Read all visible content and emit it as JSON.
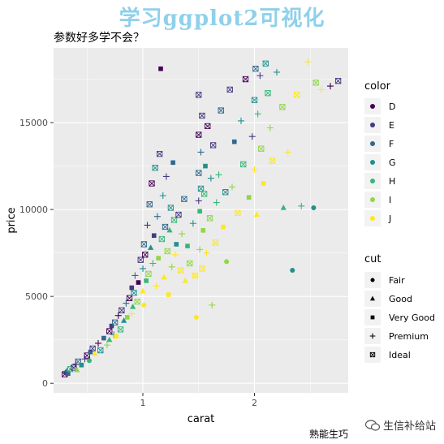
{
  "header": {
    "banner": "学习ggplot2可视化",
    "subtitle": "参数好多学不会？"
  },
  "footer": {
    "caption": "熟能生巧",
    "watermark": "生信补给站"
  },
  "colors": {
    "panel_bg": "#ebebeb",
    "grid": "#ffffff",
    "color_scale": {
      "D": "#440154",
      "E": "#443a83",
      "F": "#31688e",
      "G": "#21908d",
      "H": "#35b779",
      "I": "#8fd744",
      "J": "#fde725"
    }
  },
  "chart_data": {
    "type": "scatter",
    "xlabel": "carat",
    "ylabel": "price",
    "xlim": [
      0.2,
      2.84
    ],
    "ylim": [
      -550,
      19300
    ],
    "x_ticks": [
      1,
      2
    ],
    "y_ticks": [
      0,
      5000,
      10000,
      15000
    ],
    "grid": true,
    "legend_color": {
      "title": "color",
      "entries": [
        "D",
        "E",
        "F",
        "G",
        "H",
        "I",
        "J"
      ]
    },
    "legend_cut": {
      "title": "cut",
      "entries": [
        {
          "label": "Fair",
          "shape": "circle"
        },
        {
          "label": "Good",
          "shape": "triangle"
        },
        {
          "label": "Very Good",
          "shape": "square"
        },
        {
          "label": "Premium",
          "shape": "plus"
        },
        {
          "label": "Ideal",
          "shape": "boxx"
        }
      ]
    },
    "points": [
      [
        0.3,
        520,
        "D",
        "Ideal"
      ],
      [
        0.31,
        640,
        "E",
        "Good"
      ],
      [
        0.32,
        710,
        "G",
        "Premium"
      ],
      [
        0.33,
        560,
        "F",
        "Very Good"
      ],
      [
        0.35,
        820,
        "H",
        "Ideal"
      ],
      [
        0.38,
        900,
        "E",
        "Ideal"
      ],
      [
        0.4,
        1100,
        "D",
        "Premium"
      ],
      [
        0.41,
        760,
        "I",
        "Good"
      ],
      [
        0.42,
        1250,
        "F",
        "Ideal"
      ],
      [
        0.45,
        1050,
        "G",
        "Very Good"
      ],
      [
        0.48,
        1400,
        "E",
        "Premium"
      ],
      [
        0.5,
        1600,
        "D",
        "Ideal"
      ],
      [
        0.52,
        1300,
        "H",
        "Fair"
      ],
      [
        0.53,
        1800,
        "F",
        "Very Good"
      ],
      [
        0.55,
        2000,
        "E",
        "Ideal"
      ],
      [
        0.57,
        1700,
        "J",
        "Good"
      ],
      [
        0.6,
        2300,
        "D",
        "Premium"
      ],
      [
        0.62,
        1900,
        "G",
        "Ideal"
      ],
      [
        0.65,
        2600,
        "F",
        "Very Good"
      ],
      [
        0.68,
        2200,
        "I",
        "Premium"
      ],
      [
        0.7,
        3000,
        "D",
        "Ideal"
      ],
      [
        0.7,
        2500,
        "H",
        "Good"
      ],
      [
        0.72,
        3300,
        "E",
        "Very Good"
      ],
      [
        0.74,
        2800,
        "G",
        "Premium"
      ],
      [
        0.75,
        3500,
        "F",
        "Ideal"
      ],
      [
        0.76,
        2700,
        "J",
        "Very Good"
      ],
      [
        0.78,
        3900,
        "D",
        "Premium"
      ],
      [
        0.8,
        3100,
        "H",
        "Ideal"
      ],
      [
        0.81,
        4200,
        "E",
        "Ideal"
      ],
      [
        0.83,
        3600,
        "G",
        "Good"
      ],
      [
        0.85,
        4600,
        "F",
        "Premium"
      ],
      [
        0.86,
        3800,
        "I",
        "Very Good"
      ],
      [
        0.88,
        4900,
        "D",
        "Ideal"
      ],
      [
        0.9,
        4000,
        "J",
        "Premium"
      ],
      [
        0.9,
        5500,
        "E",
        "Very Good"
      ],
      [
        0.91,
        4400,
        "H",
        "Good"
      ],
      [
        0.92,
        5200,
        "G",
        "Ideal"
      ],
      [
        0.93,
        6200,
        "F",
        "Premium"
      ],
      [
        0.95,
        4700,
        "I",
        "Ideal"
      ],
      [
        0.96,
        5800,
        "D",
        "Very Good"
      ],
      [
        0.98,
        7100,
        "E",
        "Ideal"
      ],
      [
        1.0,
        5300,
        "J",
        "Good"
      ],
      [
        1.0,
        6600,
        "G",
        "Premium"
      ],
      [
        1.01,
        8000,
        "F",
        "Ideal"
      ],
      [
        1.01,
        4500,
        "J",
        "Fair"
      ],
      [
        1.02,
        7400,
        "D",
        "Ideal"
      ],
      [
        1.03,
        5900,
        "H",
        "Very Good"
      ],
      [
        1.04,
        9100,
        "E",
        "Premium"
      ],
      [
        1.05,
        6300,
        "I",
        "Ideal"
      ],
      [
        1.06,
        10300,
        "F",
        "Ideal"
      ],
      [
        1.07,
        7800,
        "G",
        "Good"
      ],
      [
        1.08,
        11500,
        "D",
        "Ideal"
      ],
      [
        1.09,
        6900,
        "H",
        "Premium"
      ],
      [
        1.1,
        8500,
        "E",
        "Very Good"
      ],
      [
        1.11,
        12400,
        "G",
        "Ideal"
      ],
      [
        1.12,
        5600,
        "J",
        "Premium"
      ],
      [
        1.13,
        9600,
        "F",
        "Premium"
      ],
      [
        1.14,
        7200,
        "I",
        "Very Good"
      ],
      [
        1.15,
        13200,
        "E",
        "Ideal"
      ],
      [
        1.16,
        18100,
        "D",
        "Very Good"
      ],
      [
        1.17,
        8300,
        "H",
        "Ideal"
      ],
      [
        1.18,
        10800,
        "G",
        "Premium"
      ],
      [
        1.19,
        6100,
        "J",
        "Good"
      ],
      [
        1.2,
        9000,
        "F",
        "Ideal"
      ],
      [
        1.21,
        11900,
        "E",
        "Premium"
      ],
      [
        1.22,
        7600,
        "I",
        "Ideal"
      ],
      [
        1.23,
        5100,
        "J",
        "Very Good"
      ],
      [
        1.24,
        8800,
        "H",
        "Good"
      ],
      [
        1.25,
        10100,
        "G",
        "Ideal"
      ],
      [
        1.26,
        6700,
        "I",
        "Premium"
      ],
      [
        1.27,
        12700,
        "F",
        "Very Good"
      ],
      [
        1.28,
        9400,
        "H",
        "Ideal"
      ],
      [
        1.29,
        7400,
        "J",
        "Premium"
      ],
      [
        1.3,
        8000,
        "G",
        "Very Good"
      ],
      [
        1.32,
        9700,
        "E",
        "Ideal"
      ],
      [
        1.34,
        6500,
        "J",
        "Ideal"
      ],
      [
        1.35,
        8600,
        "I",
        "Premium"
      ],
      [
        1.37,
        10600,
        "F",
        "Ideal"
      ],
      [
        1.38,
        5900,
        "J",
        "Good"
      ],
      [
        1.4,
        7900,
        "H",
        "Very Good"
      ],
      [
        1.42,
        6900,
        "I",
        "Ideal"
      ],
      [
        1.45,
        9200,
        "G",
        "Premium"
      ],
      [
        1.47,
        6200,
        "J",
        "Ideal"
      ],
      [
        1.48,
        3800,
        "J",
        "Fair"
      ],
      [
        1.5,
        10500,
        "E",
        "Premium"
      ],
      [
        1.5,
        12100,
        "F",
        "Ideal"
      ],
      [
        1.5,
        14300,
        "D",
        "Ideal"
      ],
      [
        1.5,
        16600,
        "E",
        "Ideal"
      ],
      [
        1.51,
        7700,
        "I",
        "Premium"
      ],
      [
        1.51,
        9900,
        "H",
        "Very Good"
      ],
      [
        1.52,
        11200,
        "G",
        "Ideal"
      ],
      [
        1.52,
        13300,
        "F",
        "Premium"
      ],
      [
        1.53,
        6600,
        "J",
        "Ideal"
      ],
      [
        1.53,
        15400,
        "E",
        "Ideal"
      ],
      [
        1.54,
        8800,
        "I",
        "Very Good"
      ],
      [
        1.55,
        10900,
        "H",
        "Ideal"
      ],
      [
        1.56,
        12500,
        "G",
        "Very Good"
      ],
      [
        1.57,
        7500,
        "J",
        "Premium"
      ],
      [
        1.58,
        14800,
        "D",
        "Ideal"
      ],
      [
        1.6,
        9500,
        "I",
        "Ideal"
      ],
      [
        1.61,
        11800,
        "G",
        "Premium"
      ],
      [
        1.62,
        4500,
        "I",
        "Premium"
      ],
      [
        1.63,
        13700,
        "E",
        "Ideal"
      ],
      [
        1.65,
        8100,
        "J",
        "Ideal"
      ],
      [
        1.66,
        10400,
        "H",
        "Premium"
      ],
      [
        1.68,
        12000,
        "H",
        "Premium"
      ],
      [
        1.7,
        15700,
        "F",
        "Ideal"
      ],
      [
        1.72,
        9000,
        "J",
        "Very Good"
      ],
      [
        1.74,
        11000,
        "G",
        "Ideal"
      ],
      [
        1.75,
        7000,
        "I",
        "Fair"
      ],
      [
        1.78,
        16900,
        "E",
        "Ideal"
      ],
      [
        1.8,
        11300,
        "I",
        "Premium"
      ],
      [
        1.82,
        13900,
        "F",
        "Very Good"
      ],
      [
        1.85,
        9800,
        "J",
        "Ideal"
      ],
      [
        1.88,
        15100,
        "G",
        "Premium"
      ],
      [
        1.9,
        12600,
        "H",
        "Ideal"
      ],
      [
        1.92,
        17500,
        "D",
        "Ideal"
      ],
      [
        1.95,
        10700,
        "I",
        "Very Good"
      ],
      [
        1.98,
        14200,
        "E",
        "Premium"
      ],
      [
        2.0,
        16300,
        "G",
        "Ideal"
      ],
      [
        2.0,
        12300,
        "J",
        "Premium"
      ],
      [
        2.01,
        18100,
        "F",
        "Ideal"
      ],
      [
        2.02,
        9700,
        "J",
        "Good"
      ],
      [
        2.03,
        15500,
        "H",
        "Premium"
      ],
      [
        2.05,
        17700,
        "E",
        "Premium"
      ],
      [
        2.06,
        13500,
        "I",
        "Ideal"
      ],
      [
        2.08,
        11500,
        "J",
        "Very Good"
      ],
      [
        2.1,
        18400,
        "G",
        "Ideal"
      ],
      [
        2.12,
        16700,
        "H",
        "Ideal"
      ],
      [
        2.14,
        14700,
        "I",
        "Premium"
      ],
      [
        2.16,
        12800,
        "J",
        "Ideal"
      ],
      [
        2.2,
        17900,
        "G",
        "Premium"
      ],
      [
        2.25,
        15900,
        "I",
        "Ideal"
      ],
      [
        2.26,
        10100,
        "H",
        "Good"
      ],
      [
        2.3,
        13300,
        "J",
        "Premium"
      ],
      [
        2.34,
        6500,
        "G",
        "Fair"
      ],
      [
        2.38,
        16600,
        "J",
        "Ideal"
      ],
      [
        2.42,
        10200,
        "H",
        "Premium"
      ],
      [
        2.48,
        18500,
        "J",
        "Premium"
      ],
      [
        2.53,
        10100,
        "G",
        "Fair"
      ],
      [
        2.55,
        17300,
        "I",
        "Ideal"
      ],
      [
        2.6,
        16900,
        "J",
        "Premium"
      ],
      [
        2.68,
        17100,
        "D",
        "Premium"
      ],
      [
        2.75,
        17400,
        "E",
        "Ideal"
      ]
    ]
  }
}
